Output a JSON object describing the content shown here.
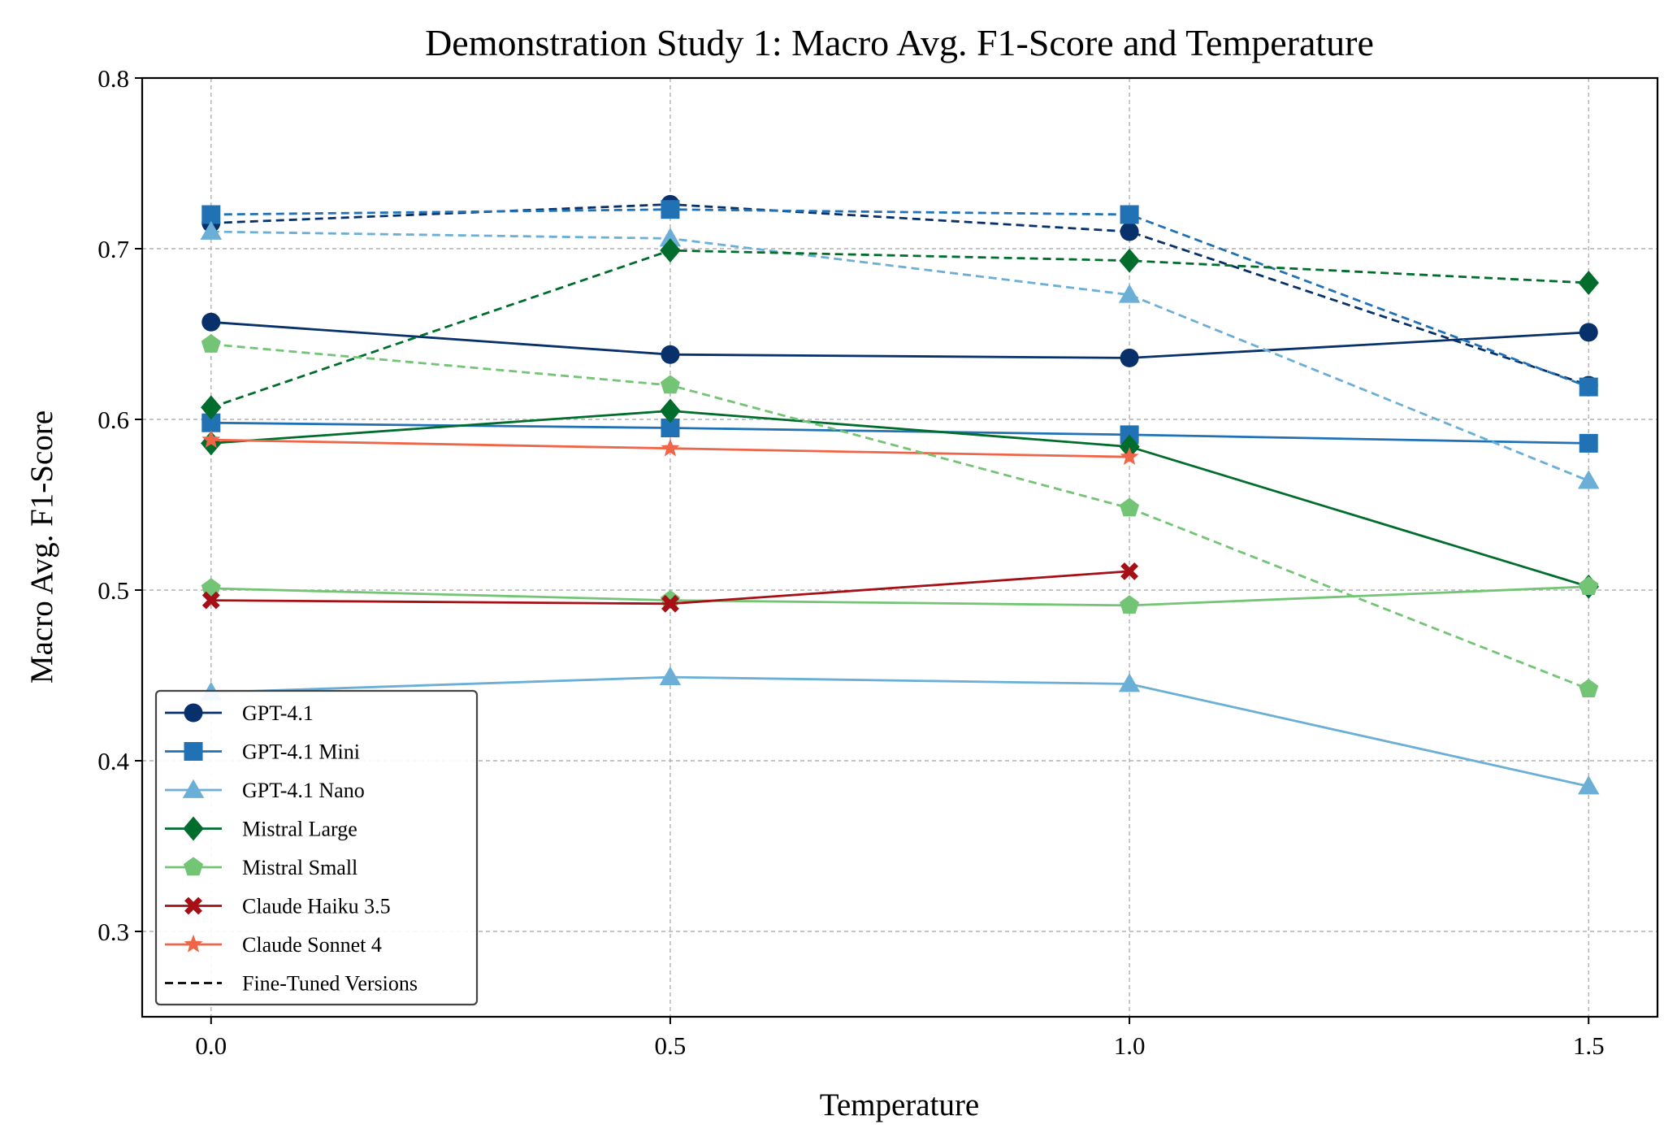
{
  "chart_data": {
    "type": "line",
    "title": "Demonstration Study 1: Macro Avg. F1-Score and Temperature",
    "xlabel": "Temperature",
    "ylabel": "Macro Avg. F1-Score",
    "x": [
      0.0,
      0.5,
      1.0,
      1.5
    ],
    "x_tick_labels": [
      "0.0",
      "0.5",
      "1.0",
      "1.5"
    ],
    "y_ticks": [
      0.3,
      0.4,
      0.5,
      0.6,
      0.7,
      0.8
    ],
    "y_tick_labels": [
      "0.3",
      "0.4",
      "0.5",
      "0.6",
      "0.7",
      "0.8"
    ],
    "xlim": [
      -0.075,
      1.575
    ],
    "ylim": [
      0.25,
      0.8
    ],
    "grid": true,
    "legend_position": "lower-left",
    "legend_note": "Fine-Tuned Versions",
    "series": [
      {
        "name": "GPT-4.1",
        "color": "#08306b",
        "marker": "circle",
        "style": "solid",
        "values": [
          0.657,
          0.638,
          0.636,
          0.651
        ]
      },
      {
        "name": "GPT-4.1 Mini",
        "color": "#2171b5",
        "marker": "square",
        "style": "solid",
        "values": [
          0.598,
          0.595,
          0.591,
          0.586
        ]
      },
      {
        "name": "GPT-4.1 Nano",
        "color": "#6baed6",
        "marker": "triangle",
        "style": "solid",
        "values": [
          0.44,
          0.449,
          0.445,
          0.385
        ]
      },
      {
        "name": "Mistral Large",
        "color": "#006d2c",
        "marker": "diamond",
        "style": "solid",
        "values": [
          0.586,
          0.605,
          0.584,
          0.502
        ]
      },
      {
        "name": "Mistral Small",
        "color": "#74c476",
        "marker": "pentagon",
        "style": "solid",
        "values": [
          0.501,
          0.494,
          0.491,
          0.502
        ]
      },
      {
        "name": "Claude Haiku 3.5",
        "color": "#a50f15",
        "marker": "x",
        "style": "solid",
        "values": [
          0.494,
          0.492,
          0.511,
          null
        ]
      },
      {
        "name": "Claude Sonnet 4",
        "color": "#ef6548",
        "marker": "star",
        "style": "solid",
        "values": [
          0.588,
          0.583,
          0.578,
          null
        ]
      },
      {
        "name": "GPT-4.1 (fine-tuned)",
        "color": "#08306b",
        "marker": "circle",
        "style": "dashed",
        "values": [
          0.715,
          0.726,
          0.71,
          0.62
        ]
      },
      {
        "name": "GPT-4.1 Mini (fine-tuned)",
        "color": "#2171b5",
        "marker": "square",
        "style": "dashed",
        "values": [
          0.72,
          0.723,
          0.72,
          0.619
        ]
      },
      {
        "name": "GPT-4.1 Nano (fine-tuned)",
        "color": "#6baed6",
        "marker": "triangle",
        "style": "dashed",
        "values": [
          0.71,
          0.706,
          0.673,
          0.564
        ]
      },
      {
        "name": "Mistral Large (fine-tuned)",
        "color": "#006d2c",
        "marker": "diamond",
        "style": "dashed",
        "values": [
          0.607,
          0.699,
          0.693,
          0.68
        ]
      },
      {
        "name": "Mistral Small (fine-tuned)",
        "color": "#74c476",
        "marker": "pentagon",
        "style": "dashed",
        "values": [
          0.644,
          0.62,
          0.548,
          0.442
        ]
      }
    ]
  }
}
